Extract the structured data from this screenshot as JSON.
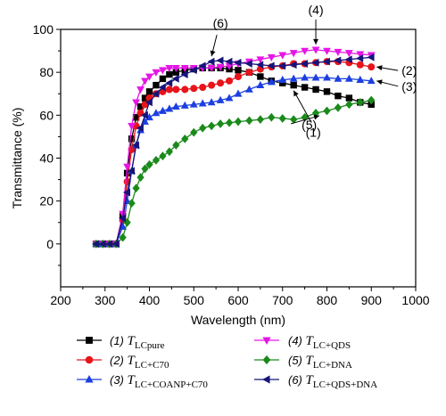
{
  "chart_data": {
    "type": "line",
    "xlabel": "Wavelength (nm)",
    "ylabel": "Transmittance (%)",
    "xlim": [
      200,
      1000
    ],
    "ylim": [
      -20,
      100
    ],
    "xticks": [
      200,
      300,
      400,
      500,
      600,
      700,
      800,
      900,
      1000
    ],
    "yticks": [
      0,
      20,
      40,
      60,
      80,
      100
    ],
    "grid": false,
    "legend_position": "bottom",
    "series": [
      {
        "key": "lcpure",
        "name_prefix": "(1)",
        "name_sub": "LCpure",
        "color": "#000000",
        "marker": "square",
        "x": [
          280,
          295,
          310,
          325,
          340,
          350,
          360,
          370,
          380,
          390,
          400,
          415,
          430,
          445,
          460,
          480,
          500,
          520,
          540,
          560,
          580,
          600,
          625,
          650,
          675,
          700,
          725,
          750,
          775,
          800,
          825,
          850,
          875,
          900
        ],
        "y": [
          0,
          0,
          0,
          0,
          13,
          33,
          49,
          59,
          64,
          68,
          71,
          74,
          77,
          79,
          80,
          81,
          81.5,
          82,
          82,
          82,
          81.5,
          81,
          80,
          78,
          76,
          75,
          74,
          73,
          72,
          71,
          69,
          68,
          66,
          65
        ]
      },
      {
        "key": "c70",
        "name_prefix": "(2)",
        "name_sub": "LC+C70",
        "color": "#e8141b",
        "marker": "circle",
        "x": [
          280,
          295,
          310,
          325,
          340,
          350,
          360,
          370,
          380,
          390,
          400,
          415,
          430,
          445,
          460,
          480,
          500,
          520,
          540,
          560,
          580,
          600,
          625,
          650,
          675,
          700,
          725,
          750,
          775,
          800,
          825,
          850,
          875,
          900
        ],
        "y": [
          0,
          0,
          0,
          0,
          11,
          29,
          44,
          55,
          61,
          65,
          68,
          70,
          71,
          72,
          72,
          72,
          72.5,
          73,
          74,
          75,
          76,
          78,
          80,
          81.5,
          82.5,
          83,
          84,
          84,
          84.5,
          85,
          85,
          84.5,
          83.5,
          82.5
        ]
      },
      {
        "key": "coanp",
        "name_prefix": "(3)",
        "name_sub": "LC+COANP+C70",
        "color": "#1c3fe0",
        "marker": "triangle-up",
        "x": [
          280,
          295,
          310,
          325,
          340,
          350,
          360,
          370,
          380,
          390,
          400,
          415,
          430,
          445,
          460,
          480,
          500,
          520,
          540,
          560,
          580,
          600,
          625,
          650,
          675,
          700,
          725,
          750,
          775,
          800,
          825,
          850,
          875,
          900
        ],
        "y": [
          0,
          0,
          0,
          0,
          8,
          20,
          34,
          46,
          53,
          57,
          59,
          61,
          62,
          63,
          64,
          64.5,
          65,
          65.5,
          66,
          67,
          68,
          70,
          72,
          74,
          75.5,
          76.5,
          77,
          77.5,
          77.5,
          77.5,
          77,
          77,
          76.5,
          76
        ]
      },
      {
        "key": "qds",
        "name_prefix": "(4)",
        "name_sub": "LC+QDS",
        "color": "#e615e6",
        "marker": "triangle-down",
        "x": [
          280,
          295,
          310,
          325,
          340,
          350,
          360,
          370,
          380,
          390,
          400,
          415,
          430,
          445,
          460,
          480,
          500,
          520,
          540,
          560,
          580,
          600,
          625,
          650,
          675,
          700,
          725,
          750,
          775,
          800,
          825,
          850,
          875,
          900
        ],
        "y": [
          0,
          0,
          0,
          0,
          14,
          36,
          55,
          66,
          72,
          76,
          78,
          80,
          81,
          82,
          82,
          82,
          82,
          82,
          82,
          82.5,
          83,
          84,
          85,
          86,
          87,
          88,
          89,
          90,
          90.5,
          90,
          89.5,
          89,
          88.5,
          88
        ]
      },
      {
        "key": "dna",
        "name_prefix": "(5)",
        "name_sub": "LC+DNA",
        "color": "#1a8a1a",
        "marker": "diamond",
        "x": [
          280,
          295,
          310,
          325,
          340,
          350,
          360,
          370,
          380,
          390,
          400,
          415,
          430,
          445,
          460,
          480,
          500,
          520,
          540,
          560,
          580,
          600,
          625,
          650,
          675,
          700,
          725,
          750,
          775,
          800,
          825,
          850,
          875,
          900
        ],
        "y": [
          0,
          0,
          0,
          0,
          3,
          10,
          19,
          26,
          31,
          35,
          37,
          39,
          41,
          43,
          46,
          49,
          52,
          54,
          55,
          56,
          56.5,
          57,
          57.5,
          58,
          59,
          58.5,
          58,
          59,
          61,
          62,
          63.5,
          65,
          66,
          67
        ]
      },
      {
        "key": "qdsdna",
        "name_prefix": "(6)",
        "name_sub": "LC+QDS+DNA",
        "color": "#15157a",
        "marker": "triangle-left",
        "x": [
          280,
          295,
          310,
          325,
          340,
          350,
          360,
          370,
          380,
          390,
          400,
          415,
          430,
          445,
          460,
          480,
          500,
          520,
          540,
          560,
          580,
          600,
          625,
          650,
          675,
          700,
          725,
          750,
          775,
          800,
          825,
          850,
          875,
          900
        ],
        "y": [
          0,
          0,
          0,
          0,
          12,
          24,
          34,
          46,
          54,
          60,
          66,
          70,
          73,
          75,
          77,
          79,
          81,
          83,
          85,
          85.5,
          85,
          84.5,
          84,
          83.5,
          83,
          83,
          83.5,
          84,
          84.5,
          85,
          85.5,
          86,
          86.5,
          87
        ]
      }
    ],
    "annotations": [
      {
        "label": "(4)",
        "series": "qds",
        "x": 775
      },
      {
        "label": "(6)",
        "series": "qdsdna",
        "x": 540
      },
      {
        "label": "(2)",
        "series": "c70",
        "x": 900
      },
      {
        "label": "(3)",
        "series": "coanp",
        "x": 900
      },
      {
        "label": "(1)",
        "series": "lcpure",
        "x": 725
      },
      {
        "label": "(5)",
        "series": "dna",
        "x": 775
      }
    ]
  }
}
